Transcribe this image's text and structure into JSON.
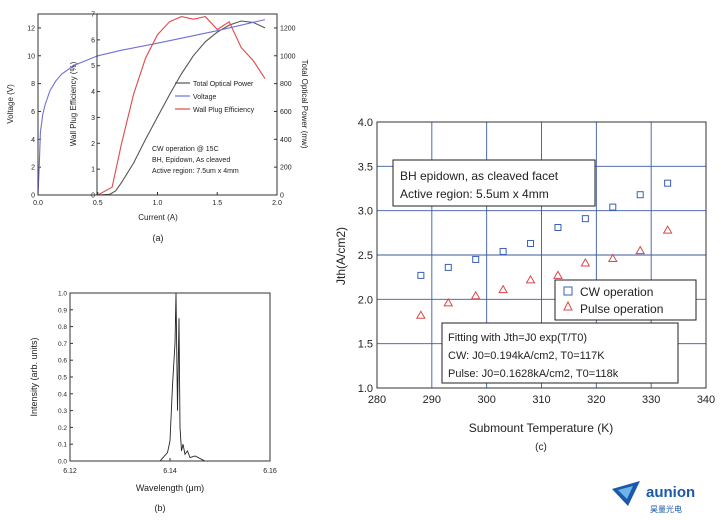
{
  "chart_data": [
    {
      "type": "line",
      "caption": "(a)",
      "xlabel": "Current (A)",
      "xlim": [
        0,
        2.0
      ],
      "x_ticks": [
        "0.0",
        "0.5",
        "1.0",
        "1.5",
        "2.0"
      ],
      "left_axes": [
        {
          "label": "Voltage (V)",
          "ylim": [
            0,
            13
          ],
          "ticks": [
            "0",
            "2",
            "4",
            "6",
            "8",
            "10",
            "12"
          ]
        },
        {
          "label": "Wall Plug Efficiency (%)",
          "ylim": [
            0,
            7
          ],
          "ticks": [
            "0",
            "1",
            "2",
            "3",
            "4",
            "5",
            "6",
            "7"
          ]
        }
      ],
      "right_axis": {
        "label": "Total Optical Power (mw)",
        "ylim": [
          0,
          1300
        ],
        "ticks": [
          "0",
          "200",
          "400",
          "600",
          "800",
          "1000",
          "1200"
        ]
      },
      "series": [
        {
          "name": "Total Optical Power",
          "axis": "power",
          "color": "#555555",
          "x": [
            0,
            0.5,
            0.6,
            0.65,
            0.7,
            0.8,
            0.9,
            1.0,
            1.1,
            1.2,
            1.3,
            1.4,
            1.5,
            1.6,
            1.7,
            1.8,
            1.9
          ],
          "y": [
            0,
            0,
            5,
            30,
            90,
            230,
            400,
            560,
            720,
            870,
            1000,
            1100,
            1170,
            1220,
            1250,
            1240,
            1200
          ]
        },
        {
          "name": "Voltage",
          "axis": "voltage",
          "color": "#7070d8",
          "x": [
            0,
            0.01,
            0.02,
            0.04,
            0.06,
            0.1,
            0.15,
            0.2,
            0.3,
            0.5,
            0.7,
            1.0,
            1.5,
            1.9
          ],
          "y": [
            0,
            2,
            4.5,
            5.8,
            6.5,
            7.5,
            8.2,
            8.7,
            9.3,
            10.0,
            10.4,
            10.9,
            11.8,
            12.6
          ]
        },
        {
          "name": "Wall Plug Efficiency",
          "axis": "wpe",
          "color": "#e04848",
          "x": [
            0,
            0.5,
            0.62,
            0.7,
            0.8,
            0.9,
            1.0,
            1.1,
            1.2,
            1.3,
            1.4,
            1.5,
            1.6,
            1.7,
            1.8,
            1.9
          ],
          "y": [
            0,
            0,
            0.3,
            2.0,
            3.9,
            5.3,
            6.2,
            6.7,
            6.9,
            6.8,
            6.9,
            6.4,
            6.7,
            5.7,
            5.2,
            4.5
          ]
        }
      ],
      "annotations": [
        "CW operation @ 15C",
        "BH, Epidown, As cleaved",
        "Active region: 7.5um x 4mm"
      ]
    },
    {
      "type": "line",
      "caption": "(b)",
      "xlabel": "Wavelength (μm)",
      "ylabel": "Intensity (arb. units)",
      "xlim": [
        6.12,
        6.16
      ],
      "ylim": [
        0,
        1.0
      ],
      "x_ticks": [
        "6.12",
        "6.14",
        "6.16"
      ],
      "y_ticks": [
        "0.0",
        "0.1",
        "0.2",
        "0.3",
        "0.4",
        "0.5",
        "0.6",
        "0.7",
        "0.8",
        "0.9",
        "1.0"
      ],
      "series": [
        {
          "color": "#222222",
          "x": [
            6.12,
            6.138,
            6.1395,
            6.14,
            6.1405,
            6.141,
            6.1412,
            6.1415,
            6.1418,
            6.142,
            6.1423,
            6.1426,
            6.143,
            6.1435,
            6.144,
            6.145,
            6.147,
            6.16
          ],
          "y": [
            0.0,
            0.0,
            0.05,
            0.12,
            0.45,
            0.7,
            1.0,
            0.3,
            0.85,
            0.2,
            0.06,
            0.1,
            0.04,
            0.06,
            0.02,
            0.03,
            0.0,
            0.0
          ]
        }
      ]
    },
    {
      "type": "scatter",
      "caption": "(c)",
      "xlabel": "Submount Temperature (K)",
      "ylabel": "Jth(A/cm2)",
      "xlim": [
        280,
        340
      ],
      "ylim": [
        1.0,
        4.0
      ],
      "x_ticks": [
        "280",
        "290",
        "300",
        "310",
        "320",
        "330",
        "340"
      ],
      "y_ticks": [
        "1.0",
        "1.5",
        "2.0",
        "2.5",
        "3.0",
        "3.5",
        "4.0"
      ],
      "grid": true,
      "series": [
        {
          "name": "CW operation",
          "marker": "square",
          "color": "#3a5fb8",
          "x": [
            288,
            293,
            298,
            303,
            308,
            313,
            318,
            323,
            328,
            333
          ],
          "y": [
            2.27,
            2.36,
            2.45,
            2.54,
            2.63,
            2.81,
            2.91,
            3.04,
            3.18,
            3.31
          ]
        },
        {
          "name": "Pulse operation",
          "marker": "triangle",
          "color": "#d84848",
          "x": [
            288,
            293,
            298,
            303,
            308,
            313,
            318,
            323,
            328,
            333
          ],
          "y": [
            1.82,
            1.96,
            2.04,
            2.11,
            2.22,
            2.27,
            2.41,
            2.46,
            2.55,
            2.78
          ]
        }
      ],
      "annotation_top": [
        "BH epidown, as cleaved facet",
        "Active region:  5.5um x 4mm"
      ],
      "annotation_bottom": [
        "Fitting with Jth=J0 exp(T/T0)",
        "CW: J0=0.194kA/cm2, T0=117K",
        "Pulse: J0=0.1628kA/cm2, T0=118k"
      ]
    }
  ],
  "logo": {
    "name": "aunion",
    "sub": "昊量光电",
    "color": "#1a5aa8"
  }
}
